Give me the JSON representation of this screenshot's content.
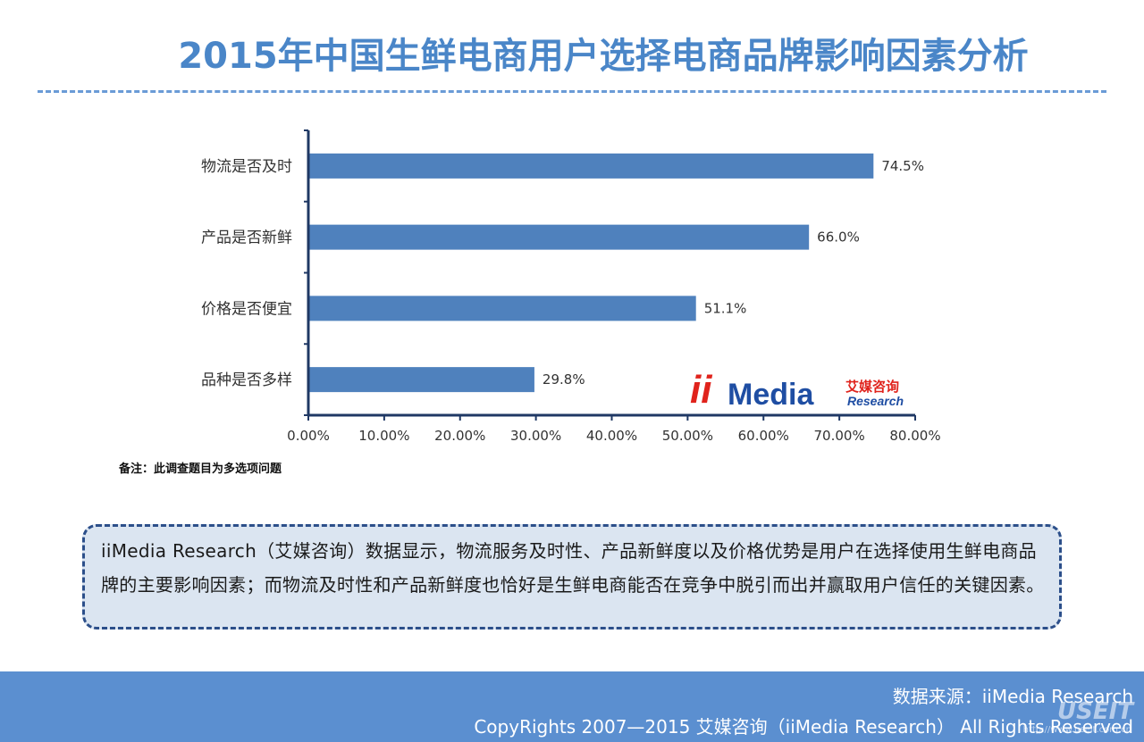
{
  "page": {
    "title": "2015年中国生鲜电商用户选择电商品牌影响因素分析",
    "note": "备注：此调查题目为多选项问题",
    "summary": "iiMedia Research（艾媒咨询）数据显示，物流服务及时性、产品新鲜度以及价格优势是用户在选择使用生鲜电商品牌的主要影响因素；而物流及时性和产品新鲜度也恰好是生鲜电商能否在竞争中脱引而出并赢取用户信任的关键因素。",
    "footer_source": "数据来源：iiMedia Research",
    "footer_copyright": "CopyRights 2007—2015 艾媒咨询（iiMedia Research） All Rights Reserved",
    "watermark": "USEIT",
    "watermark_url": "http://www.useit.com.cn"
  },
  "logo": {
    "brand": "iiMedia",
    "cn": "艾媒咨询",
    "sub": "Research",
    "colors": {
      "red": "#e0231c",
      "blue": "#1f4ea3"
    }
  },
  "chart_data": {
    "type": "bar",
    "orientation": "horizontal",
    "categories": [
      "物流是否及时",
      "产品是否新鲜",
      "价格是否便宜",
      "品种是否多样"
    ],
    "values": [
      74.5,
      66.0,
      51.1,
      29.8
    ],
    "value_labels": [
      "74.5%",
      "66.0%",
      "51.1%",
      "29.8%"
    ],
    "xlim": [
      0,
      80
    ],
    "ticks": [
      0,
      10,
      20,
      30,
      40,
      50,
      60,
      70,
      80
    ],
    "tick_labels": [
      "0.00%",
      "10.00%",
      "20.00%",
      "30.00%",
      "40.00%",
      "50.00%",
      "60.00%",
      "70.00%",
      "80.00%"
    ],
    "bar_color": "#4f81bd",
    "axis_color": "#1f3864",
    "grid": false,
    "legend": "none"
  }
}
